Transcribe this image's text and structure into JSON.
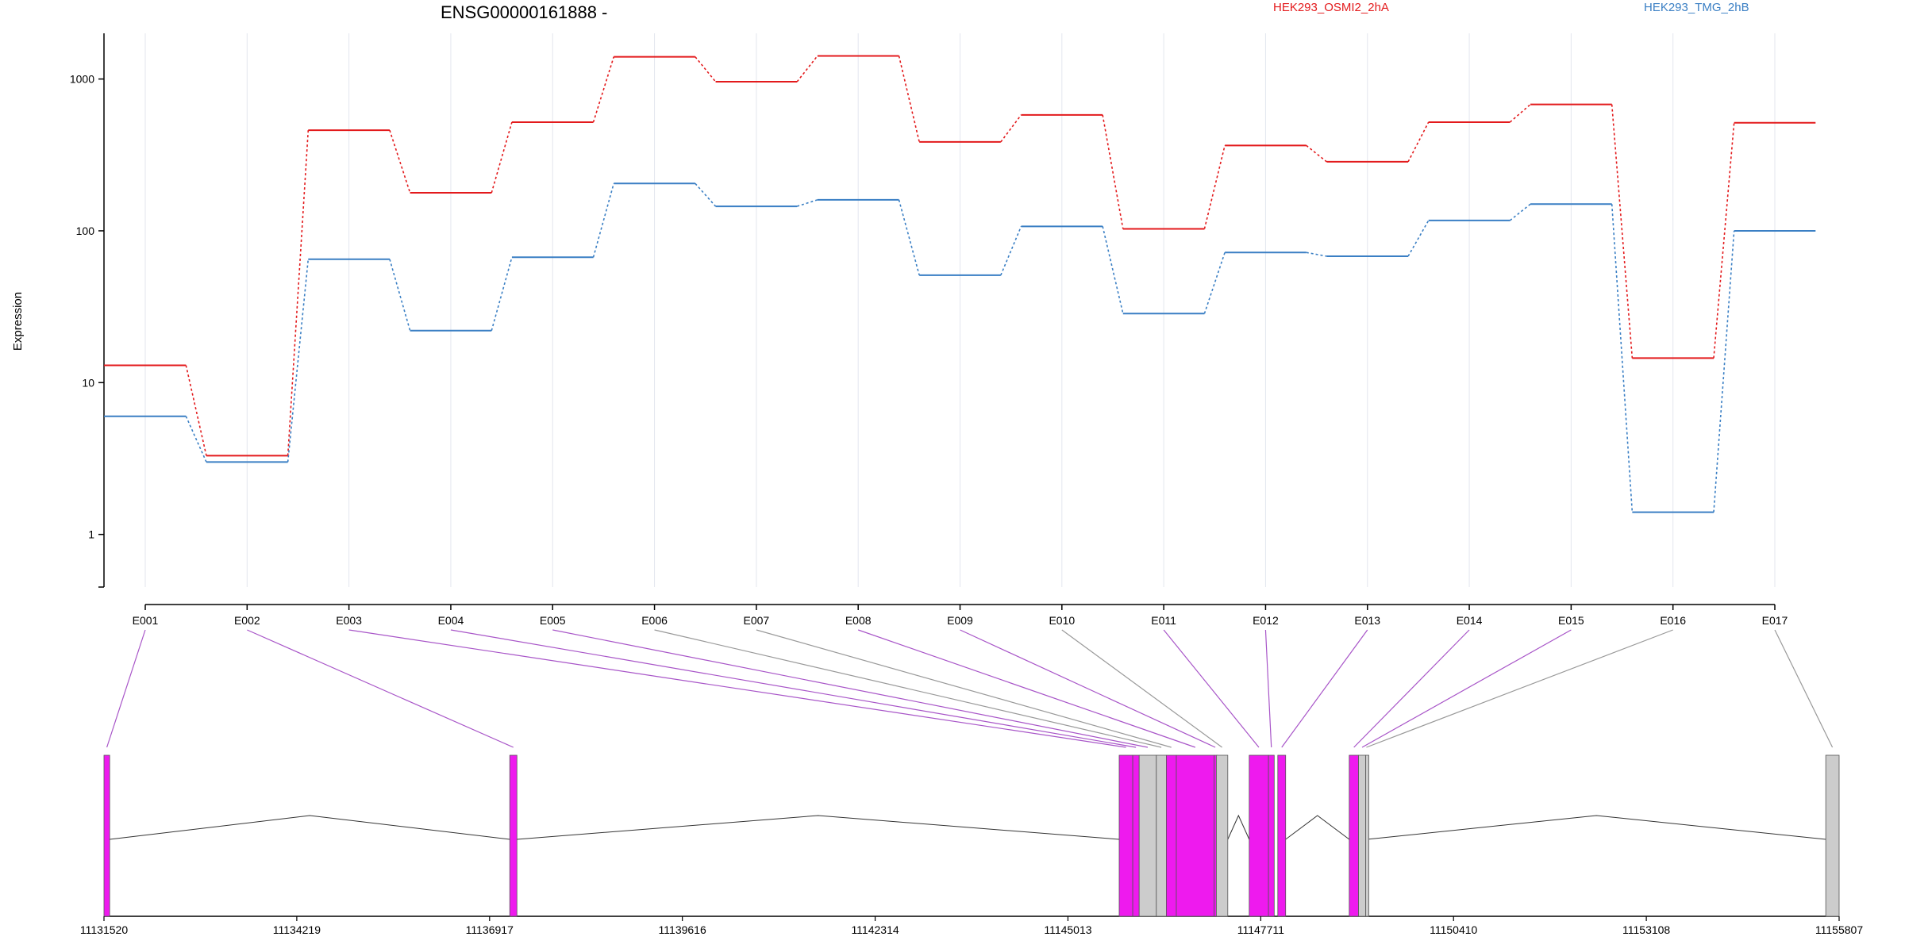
{
  "chart_data": {
    "type": "line",
    "title": "ENSG00000161888 -",
    "ylabel": "Expression",
    "xlabel": "",
    "y_scale": "log",
    "ylim": [
      0.45,
      2000
    ],
    "y_ticks": [
      {
        "value": 1,
        "label": "1"
      },
      {
        "value": 10,
        "label": "10"
      },
      {
        "value": 100,
        "label": "100"
      },
      {
        "value": 1000,
        "label": "1000"
      }
    ],
    "categories": [
      "E001",
      "E002",
      "E003",
      "E004",
      "E005",
      "E006",
      "E007",
      "E008",
      "E009",
      "E010",
      "E011",
      "E012",
      "E013",
      "E014",
      "E015",
      "E016",
      "E017"
    ],
    "grid": "vertical",
    "legend_position": "top",
    "series": [
      {
        "name": "HEK293_OSMI2_2hA",
        "color": "#e31a1c",
        "values": [
          13,
          3.3,
          460,
          178,
          520,
          1400,
          960,
          1420,
          385,
          580,
          103,
          365,
          285,
          520,
          680,
          14.5,
          515
        ]
      },
      {
        "name": "HEK293_TMG_2hB",
        "color": "#3a7fc4",
        "values": [
          6,
          3,
          65,
          22,
          67,
          205,
          145,
          160,
          51,
          107,
          28.5,
          72,
          68,
          117,
          150,
          1.4,
          100
        ]
      }
    ],
    "gene_model": {
      "coordinate_labels": [
        "11131520",
        "11134219",
        "11136917",
        "11139616",
        "11142314",
        "11145013",
        "11147711",
        "11150410",
        "11153108",
        "11155807"
      ],
      "coordinate_range": [
        11131520,
        11155807
      ],
      "exons": [
        {
          "id": "E001",
          "start": 11131520,
          "end": 11131600,
          "color": "#ee1aee"
        },
        {
          "id": "E002",
          "start": 11137200,
          "end": 11137300,
          "color": "#ee1aee"
        },
        {
          "id": "E003",
          "start": 11145730,
          "end": 11145920,
          "color": "#ee1aee"
        },
        {
          "id": "E004",
          "start": 11145920,
          "end": 11146010,
          "color": "#ee1aee"
        },
        {
          "id": "E005",
          "start": 11146010,
          "end": 11146250,
          "color": "#cccccc"
        },
        {
          "id": "E006",
          "start": 11146250,
          "end": 11146390,
          "color": "#cccccc"
        },
        {
          "id": "E007",
          "start": 11146390,
          "end": 11146530,
          "color": "#ee1aee"
        },
        {
          "id": "E008",
          "start": 11146530,
          "end": 11147060,
          "color": "#ee1aee"
        },
        {
          "id": "E009",
          "start": 11147060,
          "end": 11147090,
          "color": "#ee1aee"
        },
        {
          "id": "E010",
          "start": 11147090,
          "end": 11147250,
          "color": "#cccccc"
        },
        {
          "id": "E011",
          "start": 11147550,
          "end": 11147820,
          "color": "#ee1aee"
        },
        {
          "id": "E012",
          "start": 11147820,
          "end": 11147900,
          "color": "#ee1aee"
        },
        {
          "id": "E013",
          "start": 11147950,
          "end": 11148060,
          "color": "#ee1aee"
        },
        {
          "id": "E014",
          "start": 11148950,
          "end": 11149080,
          "color": "#ee1aee"
        },
        {
          "id": "E015",
          "start": 11149080,
          "end": 11149180,
          "color": "#cccccc"
        },
        {
          "id": "E016",
          "start": 11149180,
          "end": 11149200,
          "color": "#cccccc"
        },
        {
          "id": "E017",
          "start": 11155620,
          "end": 11155807,
          "color": "#cccccc"
        }
      ],
      "connector_colors": [
        "#a855c8",
        "#a855c8",
        "#a855c8",
        "#a855c8",
        "#a855c8",
        "#999999",
        "#999999",
        "#a855c8",
        "#a855c8",
        "#999999",
        "#a855c8",
        "#a855c8",
        "#a855c8",
        "#a855c8",
        "#a855c8",
        "#999999",
        "#999999"
      ]
    }
  }
}
